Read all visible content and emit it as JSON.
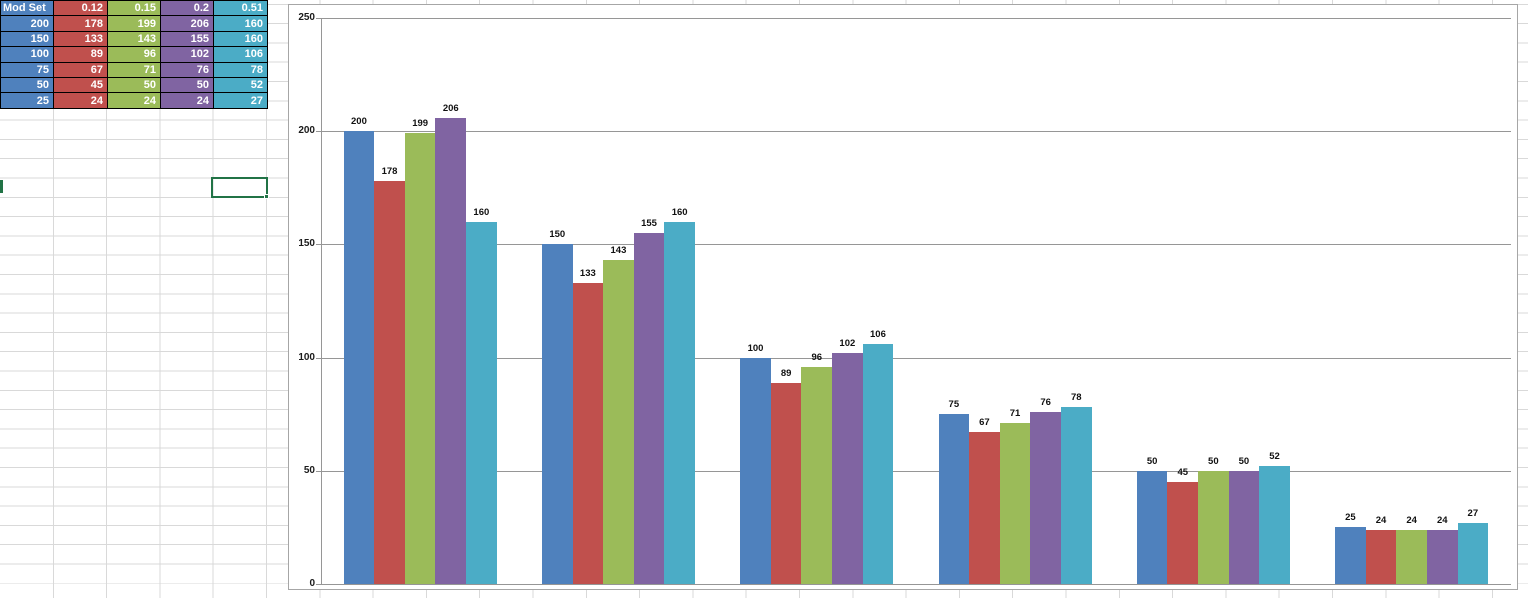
{
  "table": {
    "header": [
      "Mod Set",
      "0.12",
      "0.15",
      "0.2",
      "0.51"
    ],
    "rows": [
      [
        "200",
        "178",
        "199",
        "206",
        "160"
      ],
      [
        "150",
        "133",
        "143",
        "155",
        "160"
      ],
      [
        "100",
        "89",
        "96",
        "102",
        "106"
      ],
      [
        "75",
        "67",
        "71",
        "76",
        "78"
      ],
      [
        "50",
        "45",
        "50",
        "50",
        "52"
      ],
      [
        "25",
        "24",
        "24",
        "24",
        "27"
      ]
    ],
    "column_colors": [
      "#4f81bd",
      "#c0504d",
      "#9bbb59",
      "#8064a2",
      "#4bacc6"
    ]
  },
  "chart_data": {
    "type": "bar",
    "title": "",
    "xlabel": "",
    "ylabel": "",
    "categories": [
      "200",
      "150",
      "100",
      "75",
      "50",
      "25"
    ],
    "series": [
      {
        "name": "Mod Set",
        "color": "#4f81bd",
        "values": [
          200,
          150,
          100,
          75,
          50,
          25
        ]
      },
      {
        "name": "0.12",
        "color": "#c0504d",
        "values": [
          178,
          133,
          89,
          67,
          45,
          24
        ]
      },
      {
        "name": "0.15",
        "color": "#9bbb59",
        "values": [
          199,
          143,
          96,
          71,
          50,
          24
        ]
      },
      {
        "name": "0.2",
        "color": "#8064a2",
        "values": [
          206,
          155,
          102,
          76,
          50,
          24
        ]
      },
      {
        "name": "0.51",
        "color": "#4bacc6",
        "values": [
          160,
          160,
          106,
          78,
          52,
          27
        ]
      }
    ],
    "ylim": [
      0,
      250
    ],
    "yticks": [
      0,
      50,
      100,
      150,
      200,
      250
    ],
    "grid": true,
    "legend": "none",
    "data_labels": true
  },
  "colors": {
    "selection_green": "#217346",
    "sheet_gridline": "#d9d9d9",
    "chart_gridline": "#969696",
    "chart_border": "#a6a6a6",
    "table_border": "#000000",
    "table_text": "#ffffff"
  }
}
